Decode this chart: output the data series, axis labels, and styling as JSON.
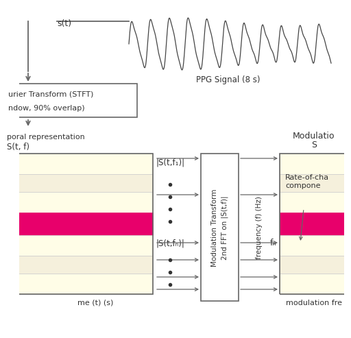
{
  "bg_color": "#ffffff",
  "ppg_label": "PPG Signal (8 s)",
  "stft_box_line1": "urier Transform (STFT)",
  "stft_box_line2": "ndow, 90% overlap)",
  "stft_label_top": "s(t)",
  "temporal_label1": "poral representation",
  "temporal_label2": "S(t, f)",
  "s_t_f1_label": "|S(t,f₁)|",
  "s_t_fn_label": "|S(t,fₙ)|",
  "mod_box_line1": "Modulation Transform",
  "mod_box_line2": "2nd FFT on |S(t,f)|",
  "freq_label": "frequency (f) (Hz)",
  "fn_label": "fₙ",
  "mod_title1": "Modulatio",
  "mod_title2": "S",
  "rate_label": "Rate-of-cha\ncompone",
  "time_label": "me (t) (s)",
  "mod_freq_label": "modulation fre",
  "yellow_light": "#fffde7",
  "yellow_stripe": "#fffff0",
  "beige_stripe": "#f5f0dc",
  "pink_color": "#e8006b",
  "white": "#ffffff",
  "gray_line": "#666666",
  "text_color": "#333333"
}
